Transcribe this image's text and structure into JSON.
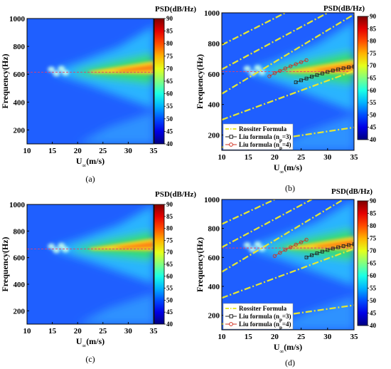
{
  "chart_data": [
    {
      "type": "heatmap",
      "panel_label": "(a)",
      "xlabel": "U∞(m/s)",
      "ylabel": "Frequency(Hz)",
      "colorbar_title": "PSD(dB/Hz)",
      "xlim": [
        10,
        35
      ],
      "ylim": [
        100,
        1000
      ],
      "xticks": [
        "10",
        "15",
        "20",
        "25",
        "30",
        "35"
      ],
      "yticks": [
        "200",
        "400",
        "600",
        "800",
        "1000"
      ],
      "colorbar_ticks": [
        "40",
        "45",
        "50",
        "55",
        "60",
        "65",
        "70",
        "75",
        "80",
        "85",
        "90"
      ],
      "clim": [
        40,
        90
      ],
      "reference_line_hz": 615,
      "legend": null,
      "series": []
    },
    {
      "type": "heatmap",
      "panel_label": "(b)",
      "xlabel": "U∞(m/s)",
      "ylabel": "Frequency(Hz)",
      "colorbar_title": "PSD(dB/Hz)",
      "xlim": [
        10,
        35
      ],
      "ylim": [
        100,
        1000
      ],
      "xticks": [
        "10",
        "15",
        "20",
        "25",
        "30",
        "35"
      ],
      "yticks": [
        "200",
        "400",
        "600",
        "800",
        "1000"
      ],
      "colorbar_ticks": [
        "40",
        "45",
        "50",
        "55",
        "60",
        "65",
        "70",
        "75",
        "80",
        "85",
        "90"
      ],
      "clim": [
        40,
        90
      ],
      "reference_line_hz": 615,
      "legend": {
        "placement": "bottom-left",
        "entries": [
          {
            "label": "Rossiter Formula",
            "style": "dashdot",
            "color": "#e8e830"
          },
          {
            "label_main": "Liu formula (n",
            "label_sub": "p",
            "label_tail": "=3)",
            "style": "square",
            "color": "#222222"
          },
          {
            "label_main": "Liu formula (n",
            "label_sub": "p",
            "label_tail": "=4)",
            "style": "circle",
            "color": "#d03020"
          }
        ]
      },
      "series": [
        {
          "style": "dashdot",
          "color": "#e8e830",
          "x": [
            10,
            35
          ],
          "y": [
            120,
            250
          ]
        },
        {
          "style": "dashdot",
          "color": "#e8e830",
          "x": [
            10,
            35
          ],
          "y": [
            300,
            620
          ]
        },
        {
          "style": "dashdot",
          "color": "#e8e830",
          "x": [
            10,
            35
          ],
          "y": [
            470,
            990
          ]
        },
        {
          "style": "dashdot",
          "color": "#e8e830",
          "x": [
            10,
            30
          ],
          "y": [
            630,
            1000
          ]
        },
        {
          "style": "dashdot",
          "color": "#e8e830",
          "x": [
            10,
            22
          ],
          "y": [
            790,
            1000
          ]
        },
        {
          "style": "square",
          "color": "#222222",
          "x": [
            24,
            25,
            26,
            27,
            28,
            29,
            30,
            31,
            32,
            33,
            34,
            35
          ],
          "y": [
            545,
            558,
            570,
            582,
            593,
            603,
            613,
            622,
            630,
            637,
            643,
            648
          ]
        },
        {
          "style": "circle",
          "color": "#d03020",
          "x": [
            19,
            20,
            21,
            22,
            23,
            24,
            25,
            26
          ],
          "y": [
            585,
            605,
            620,
            636,
            650,
            664,
            677,
            690
          ]
        }
      ]
    },
    {
      "type": "heatmap",
      "panel_label": "(c)",
      "xlabel": "U∞(m/s)",
      "ylabel": "Frequency(Hz)",
      "colorbar_title": "PSD(dB/Hz)",
      "xlim": [
        10,
        35
      ],
      "ylim": [
        100,
        1000
      ],
      "xticks": [
        "10",
        "15",
        "20",
        "25",
        "30",
        "35"
      ],
      "yticks": [
        "200",
        "400",
        "600",
        "800",
        "1000"
      ],
      "colorbar_ticks": [
        "40",
        "45",
        "50",
        "55",
        "60",
        "65",
        "70",
        "75",
        "80",
        "85",
        "90"
      ],
      "clim": [
        40,
        90
      ],
      "reference_line_hz": 665,
      "legend": null,
      "series": []
    },
    {
      "type": "heatmap",
      "panel_label": "(d)",
      "xlabel": "U∞(m/s)",
      "ylabel": "Frequency(Hz)",
      "colorbar_title": "PSD(dB/Hz)",
      "xlim": [
        10,
        35
      ],
      "ylim": [
        100,
        1000
      ],
      "xticks": [
        "10",
        "15",
        "20",
        "25",
        "30",
        "35"
      ],
      "yticks": [
        "200",
        "400",
        "600",
        "800",
        "1000"
      ],
      "colorbar_ticks": [
        "40",
        "45",
        "50",
        "55",
        "60",
        "65",
        "70",
        "75",
        "80",
        "85",
        "90"
      ],
      "clim": [
        40,
        90
      ],
      "reference_line_hz": 665,
      "legend": {
        "placement": "bottom-left",
        "entries": [
          {
            "label": "Rossiter Formula",
            "style": "dashdot",
            "color": "#e8e830"
          },
          {
            "label_main": "Liu formula (n",
            "label_sub": "p",
            "label_tail": "=3)",
            "style": "square",
            "color": "#222222"
          },
          {
            "label_main": "Liu formula (n",
            "label_sub": "p",
            "label_tail": "=4)",
            "style": "circle",
            "color": "#d03020"
          }
        ]
      },
      "series": [
        {
          "style": "dashdot",
          "color": "#e8e830",
          "x": [
            10,
            35
          ],
          "y": [
            140,
            270
          ]
        },
        {
          "style": "dashdot",
          "color": "#e8e830",
          "x": [
            10,
            35
          ],
          "y": [
            320,
            660
          ]
        },
        {
          "style": "dashdot",
          "color": "#e8e830",
          "x": [
            10,
            33
          ],
          "y": [
            500,
            1000
          ]
        },
        {
          "style": "dashdot",
          "color": "#e8e830",
          "x": [
            10,
            27
          ],
          "y": [
            670,
            1000
          ]
        },
        {
          "style": "dashdot",
          "color": "#e8e830",
          "x": [
            10,
            20
          ],
          "y": [
            830,
            1000
          ]
        },
        {
          "style": "square",
          "color": "#222222",
          "x": [
            26,
            27,
            28,
            29,
            30,
            31,
            32,
            33,
            34,
            35
          ],
          "y": [
            600,
            615,
            628,
            640,
            651,
            661,
            670,
            678,
            685,
            691
          ]
        },
        {
          "style": "circle",
          "color": "#d03020",
          "x": [
            20,
            21,
            22,
            23,
            24,
            25,
            26
          ],
          "y": [
            610,
            632,
            652,
            670,
            688,
            705,
            722
          ]
        }
      ]
    }
  ]
}
